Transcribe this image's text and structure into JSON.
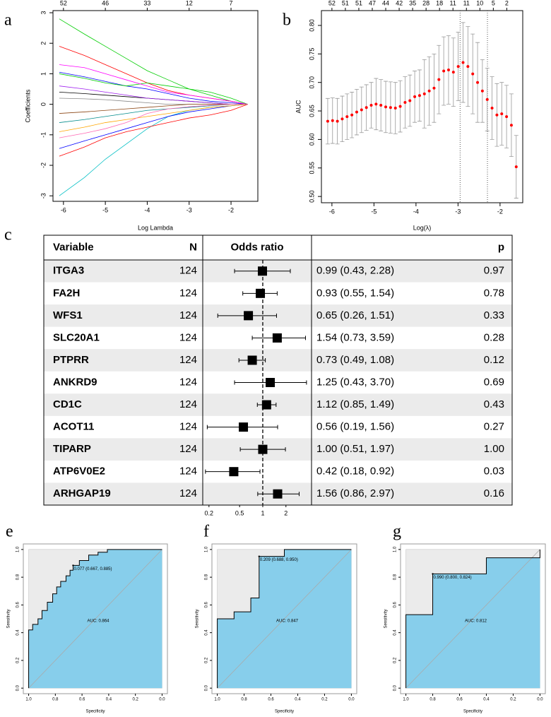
{
  "chart_data": [
    {
      "type": "line",
      "panel": "a",
      "xlabel": "Log Lambda",
      "ylabel": "Coefficients",
      "x": [
        -6.1,
        -5.5,
        -5,
        -4.5,
        -4,
        -3.5,
        -3,
        -2.5,
        -2,
        -1.6
      ],
      "series": [
        {
          "color": "#00cd00",
          "values": [
            2.8,
            2.3,
            1.9,
            1.5,
            1.1,
            0.8,
            0.5,
            0.3,
            0.1,
            0
          ]
        },
        {
          "color": "#ff0000",
          "values": [
            1.9,
            1.6,
            1.3,
            1.0,
            0.7,
            0.45,
            0.3,
            0.2,
            0.1,
            0
          ]
        },
        {
          "color": "#0000ff",
          "values": [
            1.05,
            0.9,
            0.75,
            0.6,
            0.5,
            0.35,
            0.2,
            0.1,
            0.05,
            0
          ]
        },
        {
          "color": "#00bfc4",
          "values": [
            -3.0,
            -2.4,
            -1.8,
            -1.3,
            -0.8,
            -0.4,
            -0.2,
            -0.1,
            -0.05,
            0
          ]
        },
        {
          "color": "#ff0000",
          "values": [
            -1.7,
            -1.4,
            -1.1,
            -0.9,
            -0.75,
            -0.6,
            -0.45,
            -0.35,
            -0.2,
            0
          ]
        },
        {
          "color": "#0000ff",
          "values": [
            -1.45,
            -1.2,
            -1.0,
            -0.8,
            -0.6,
            -0.4,
            -0.25,
            -0.15,
            -0.05,
            0
          ]
        },
        {
          "color": "#00cd00",
          "values": [
            1.0,
            0.85,
            0.7,
            0.6,
            0.7,
            0.6,
            0.5,
            0.4,
            0.2,
            0
          ]
        },
        {
          "color": "#ff00ff",
          "values": [
            1.3,
            1.2,
            1.0,
            0.8,
            0.6,
            0.4,
            0.3,
            0.2,
            0.1,
            0
          ]
        },
        {
          "color": "#000000",
          "values": [
            0.4,
            0.35,
            0.3,
            0.25,
            0.2,
            0.15,
            0.1,
            0.05,
            0,
            0
          ]
        },
        {
          "color": "#ffa500",
          "values": [
            -0.9,
            -0.75,
            -0.6,
            -0.5,
            -0.4,
            -0.3,
            -0.2,
            -0.1,
            -0.05,
            0
          ]
        },
        {
          "color": "#a020f0",
          "values": [
            0.6,
            0.5,
            0.4,
            0.3,
            0.2,
            0.15,
            0.1,
            0.05,
            0,
            0
          ]
        },
        {
          "color": "#008b8b",
          "values": [
            -0.6,
            -0.5,
            -0.4,
            -0.3,
            -0.2,
            -0.15,
            -0.1,
            -0.05,
            0,
            0
          ]
        },
        {
          "color": "#888888",
          "values": [
            0.2,
            0.18,
            0.15,
            0.1,
            0.05,
            0,
            0,
            0,
            0,
            0
          ]
        },
        {
          "color": "#8b4513",
          "values": [
            -0.3,
            -0.25,
            -0.2,
            -0.15,
            -0.1,
            -0.05,
            0,
            0,
            0,
            0
          ]
        },
        {
          "color": "#ff69b4",
          "values": [
            -1.1,
            -0.95,
            -0.8,
            -0.6,
            -0.3,
            -0.15,
            -0.08,
            -0.03,
            0,
            0
          ]
        }
      ],
      "xlim": [
        -6.25,
        -1.36
      ],
      "ylim": [
        -3.18,
        3.07
      ],
      "xticks": [
        -6,
        -5,
        -4,
        -3,
        -2
      ],
      "yticks": [
        -3,
        -2,
        -1,
        0,
        1,
        2,
        3
      ],
      "top_ticks": [
        {
          "value": -6,
          "label": "52"
        },
        {
          "value": -5,
          "label": "46"
        },
        {
          "value": -4,
          "label": "33"
        },
        {
          "value": -3,
          "label": "12"
        },
        {
          "value": -2,
          "label": "7"
        }
      ]
    },
    {
      "type": "errorbar",
      "panel": "b",
      "xlabel": "Log(λ)",
      "ylabel": "AUC",
      "color": "#ff0000",
      "x": [
        -6.1,
        -5.985,
        -5.87,
        -5.755,
        -5.64,
        -5.525,
        -5.41,
        -5.295,
        -5.18,
        -5.065,
        -4.95,
        -4.835,
        -4.72,
        -4.605,
        -4.49,
        -4.375,
        -4.26,
        -4.145,
        -4.03,
        -3.915,
        -3.8,
        -3.685,
        -3.57,
        -3.455,
        -3.34,
        -3.225,
        -3.11,
        -2.995,
        -2.88,
        -2.765,
        -2.65,
        -2.535,
        -2.42,
        -2.305,
        -2.19,
        -2.075,
        -1.96,
        -1.845,
        -1.73,
        -1.615
      ],
      "values": [
        0.632,
        0.633,
        0.632,
        0.636,
        0.64,
        0.643,
        0.648,
        0.652,
        0.656,
        0.66,
        0.662,
        0.66,
        0.657,
        0.656,
        0.655,
        0.658,
        0.665,
        0.668,
        0.675,
        0.677,
        0.68,
        0.685,
        0.69,
        0.705,
        0.72,
        0.722,
        0.718,
        0.728,
        0.735,
        0.728,
        0.715,
        0.7,
        0.685,
        0.67,
        0.655,
        0.643,
        0.645,
        0.64,
        0.625,
        0.552
      ],
      "errors": [
        0.04,
        0.04,
        0.04,
        0.04,
        0.04,
        0.04,
        0.04,
        0.04,
        0.04,
        0.04,
        0.045,
        0.045,
        0.045,
        0.045,
        0.045,
        0.045,
        0.045,
        0.045,
        0.045,
        0.045,
        0.06,
        0.06,
        0.06,
        0.06,
        0.06,
        0.06,
        0.06,
        0.06,
        0.07,
        0.07,
        0.07,
        0.07,
        0.055,
        0.055,
        0.055,
        0.055,
        0.055,
        0.055,
        0.055,
        0.055
      ],
      "vlines": [
        -2.95,
        -2.3
      ],
      "xlim": [
        -6.25,
        -1.46
      ],
      "ylim": [
        0.489,
        0.826
      ],
      "xticks": [
        -6,
        -5,
        -4,
        -3,
        -2
      ],
      "yticks": [
        {
          "value": 0.5,
          "label": "0.50"
        },
        0.55,
        {
          "value": 0.6,
          "label": "0.60"
        },
        0.65,
        {
          "value": 0.7,
          "label": "0.70"
        },
        0.75,
        {
          "value": 0.8,
          "label": "0.80"
        }
      ],
      "top_ticks": [
        {
          "value": -6,
          "label": "52"
        },
        {
          "value": -5.68,
          "label": "51"
        },
        {
          "value": -5.36,
          "label": "51"
        },
        {
          "value": -5.04,
          "label": "47"
        },
        {
          "value": -4.72,
          "label": "44"
        },
        {
          "value": -4.4,
          "label": "42"
        },
        {
          "value": -4.08,
          "label": "35"
        },
        {
          "value": -3.76,
          "label": "28"
        },
        {
          "value": -3.44,
          "label": "18"
        },
        {
          "value": -3.12,
          "label": "11"
        },
        {
          "value": -2.8,
          "label": "11"
        },
        {
          "value": -2.48,
          "label": "10"
        },
        {
          "value": -2.16,
          "label": "5"
        },
        {
          "value": -1.84,
          "label": "2"
        }
      ]
    },
    {
      "type": "forest",
      "panel": "c",
      "headers": {
        "variable": "Variable",
        "n": "N",
        "or": "Odds ratio",
        "p": "p"
      },
      "categories": [
        "ITGA3",
        "FA2H",
        "WFS1",
        "SLC20A1",
        "PTPRR",
        "ANKRD9",
        "CD1C",
        "ACOT11",
        "TIPARP",
        "ATP6V0E2",
        "ARHGAP19"
      ],
      "n": [
        124,
        124,
        124,
        124,
        124,
        124,
        124,
        124,
        124,
        124,
        124
      ],
      "values": [
        0.99,
        0.93,
        0.65,
        1.54,
        0.73,
        1.25,
        1.12,
        0.56,
        1.0,
        0.42,
        1.56
      ],
      "lower": [
        0.43,
        0.55,
        0.26,
        0.73,
        0.49,
        0.43,
        0.85,
        0.19,
        0.51,
        0.18,
        0.86
      ],
      "upper": [
        2.28,
        1.54,
        1.51,
        3.59,
        1.08,
        3.7,
        1.49,
        1.56,
        1.97,
        0.92,
        2.97
      ],
      "value_labels": [
        "0.99 (0.43, 2.28)",
        "0.93 (0.55, 1.54)",
        "0.65 (0.26, 1.51)",
        "1.54 (0.73, 3.59)",
        "0.73 (0.49, 1.08)",
        "1.25 (0.43, 3.70)",
        "1.12 (0.85, 1.49)",
        "0.56 (0.19, 1.56)",
        "1.00 (0.51, 1.97)",
        "0.42 (0.18, 0.92)",
        "1.56 (0.86, 2.97)"
      ],
      "p": [
        "0.97",
        "0.78",
        "0.33",
        "0.28",
        "0.12",
        "0.69",
        "0.43",
        "0.27",
        "1.00",
        "0.03",
        "0.16"
      ],
      "log": true,
      "reference": 1,
      "xlim": [
        0.166,
        4.3
      ],
      "xticks": [
        0.2,
        0.5,
        1,
        2
      ]
    },
    {
      "type": "roc",
      "panel": "e",
      "xlabel": "Specificity",
      "ylabel": "Sensitivity",
      "color": "#87ceeb",
      "auc_label": "AUC: 0.864",
      "x": [
        1,
        1,
        0.97,
        0.97,
        0.93,
        0.93,
        0.9,
        0.9,
        0.86,
        0.86,
        0.82,
        0.82,
        0.79,
        0.79,
        0.76,
        0.76,
        0.72,
        0.72,
        0.69,
        0.69,
        0.667,
        0.667,
        0.62,
        0.62,
        0.55,
        0.55,
        0.48,
        0.48,
        0.41,
        0.41,
        0
      ],
      "values": [
        0,
        0.42,
        0.42,
        0.46,
        0.46,
        0.5,
        0.5,
        0.56,
        0.56,
        0.62,
        0.62,
        0.68,
        0.68,
        0.73,
        0.73,
        0.77,
        0.77,
        0.81,
        0.81,
        0.85,
        0.85,
        0.885,
        0.885,
        0.92,
        0.92,
        0.96,
        0.96,
        0.98,
        0.98,
        1,
        1
      ],
      "threshold": {
        "x": 0.667,
        "y": 0.885,
        "label": "0.077 (0.667, 0.885)"
      },
      "xlim": [
        1.04,
        -0.04
      ],
      "ylim": [
        -0.04,
        1.04
      ],
      "xticks": [
        {
          "value": 1,
          "label": "1.0"
        },
        0.8,
        0.6,
        0.4,
        0.2,
        {
          "value": 0,
          "label": "0.0"
        }
      ],
      "yticks": [
        {
          "value": 0,
          "label": "0.0"
        },
        0.2,
        0.4,
        0.6,
        0.8,
        {
          "value": 1,
          "label": "1.0"
        }
      ]
    },
    {
      "type": "roc",
      "panel": "f",
      "xlabel": "Specificity",
      "ylabel": "Sensitivity",
      "color": "#87ceeb",
      "auc_label": "AUC: 0.847",
      "x": [
        1,
        1,
        0.875,
        0.875,
        0.75,
        0.75,
        0.688,
        0.688,
        0.5,
        0.5,
        0
      ],
      "values": [
        0,
        0.5,
        0.5,
        0.55,
        0.55,
        0.65,
        0.65,
        0.95,
        0.95,
        1,
        1
      ],
      "threshold": {
        "x": 0.688,
        "y": 0.95,
        "label": "0.209 (0.688, 0.950)"
      },
      "xlim": [
        1.04,
        -0.04
      ],
      "ylim": [
        -0.04,
        1.04
      ],
      "xticks": [
        {
          "value": 1,
          "label": "1.0"
        },
        0.8,
        0.6,
        0.4,
        0.2,
        {
          "value": 0,
          "label": "0.0"
        }
      ],
      "yticks": [
        {
          "value": 0,
          "label": "0.0"
        },
        0.2,
        0.4,
        0.6,
        0.8,
        {
          "value": 1,
          "label": "1.0"
        }
      ]
    },
    {
      "type": "roc",
      "panel": "g",
      "xlabel": "Specificity",
      "ylabel": "Sensitivity",
      "color": "#87ceeb",
      "auc_label": "AUC: 0.812",
      "x": [
        1,
        1,
        0.8,
        0.8,
        0.4,
        0.4,
        0,
        0
      ],
      "values": [
        0,
        0.53,
        0.53,
        0.824,
        0.824,
        0.94,
        0.94,
        1
      ],
      "threshold": {
        "x": 0.8,
        "y": 0.824,
        "label": "0.990 (0.800, 0.824)"
      },
      "xlim": [
        1.04,
        -0.04
      ],
      "ylim": [
        -0.04,
        1.04
      ],
      "xticks": [
        {
          "value": 1,
          "label": "1.0"
        },
        0.8,
        0.6,
        0.4,
        0.2,
        {
          "value": 0,
          "label": "0.0"
        }
      ],
      "yticks": [
        {
          "value": 0,
          "label": "0.0"
        },
        0.2,
        0.4,
        0.6,
        0.8,
        {
          "value": 1,
          "label": "1.0"
        }
      ]
    }
  ]
}
